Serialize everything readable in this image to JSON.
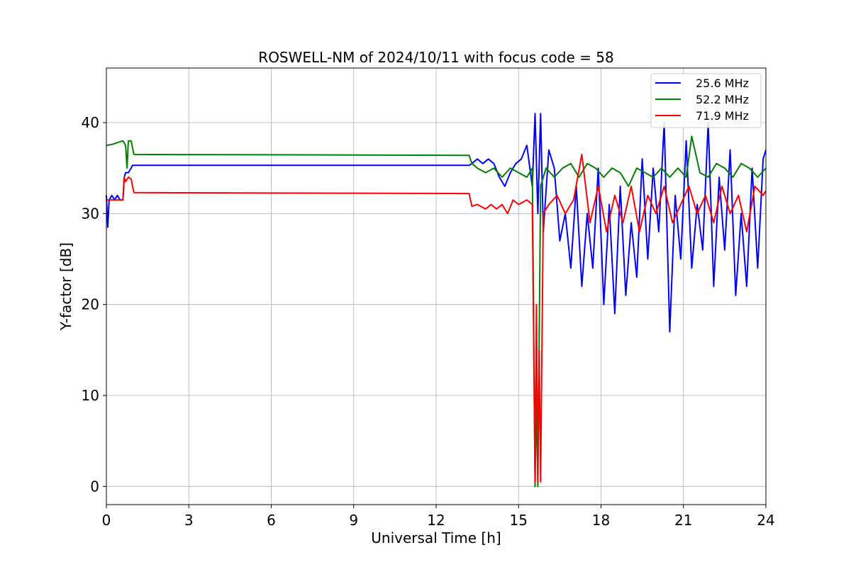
{
  "chart_data": {
    "type": "line",
    "title": "ROSWELL-NM of 2024/10/11 with focus code = 58",
    "xlabel": "Universal Time [h]",
    "ylabel": "Y-factor [dB]",
    "xlim": [
      0,
      24
    ],
    "ylim": [
      -2,
      46
    ],
    "xticks": [
      0,
      3,
      6,
      9,
      12,
      15,
      18,
      21,
      24
    ],
    "yticks": [
      0,
      10,
      20,
      30,
      40
    ],
    "grid": true,
    "legend_position": "top-right",
    "series": [
      {
        "name": "25.6 MHz",
        "color": "#0000ff",
        "x": [
          0.0,
          0.05,
          0.1,
          0.2,
          0.3,
          0.4,
          0.5,
          0.6,
          0.65,
          0.7,
          0.8,
          0.9,
          0.95,
          1.0,
          13.2,
          13.3,
          13.5,
          13.7,
          13.9,
          14.1,
          14.3,
          14.5,
          14.7,
          14.9,
          15.1,
          15.3,
          15.5,
          15.6,
          15.7,
          15.8,
          15.9,
          16.1,
          16.3,
          16.5,
          16.7,
          16.9,
          17.1,
          17.3,
          17.5,
          17.7,
          17.9,
          18.1,
          18.3,
          18.5,
          18.7,
          18.9,
          19.1,
          19.3,
          19.5,
          19.7,
          19.9,
          20.1,
          20.3,
          20.5,
          20.7,
          20.9,
          21.1,
          21.3,
          21.5,
          21.7,
          21.9,
          22.1,
          22.3,
          22.5,
          22.7,
          22.9,
          23.1,
          23.3,
          23.5,
          23.7,
          23.9,
          24.0
        ],
        "values": [
          32,
          28.5,
          31.5,
          32,
          31.5,
          32,
          31.5,
          31.5,
          34,
          34.5,
          34.5,
          35,
          35.3,
          35.3,
          35.3,
          35.5,
          36,
          35.5,
          36,
          35.5,
          34,
          33,
          34.5,
          35.5,
          36,
          37.5,
          33,
          41,
          30,
          41,
          28,
          37,
          35,
          27,
          30,
          24,
          33,
          22,
          30,
          24,
          35,
          20,
          31,
          19,
          33,
          21,
          29,
          23,
          36,
          25,
          35,
          28,
          40,
          17,
          32,
          25,
          38,
          24,
          31,
          26,
          40,
          22,
          34,
          26,
          37,
          21,
          30,
          22,
          35,
          24,
          36,
          37
        ]
      },
      {
        "name": "52.2 MHz",
        "color": "#008000",
        "x": [
          0.0,
          0.2,
          0.4,
          0.6,
          0.7,
          0.75,
          0.8,
          0.9,
          1.0,
          13.2,
          13.3,
          13.5,
          13.8,
          14.1,
          14.4,
          14.7,
          15.0,
          15.3,
          15.5,
          15.6,
          15.65,
          15.7,
          15.8,
          16.0,
          16.3,
          16.6,
          16.9,
          17.2,
          17.5,
          17.8,
          18.1,
          18.4,
          18.7,
          19.0,
          19.3,
          19.6,
          19.9,
          20.2,
          20.5,
          20.8,
          21.1,
          21.3,
          21.6,
          21.9,
          22.2,
          22.5,
          22.8,
          23.1,
          23.4,
          23.7,
          24.0
        ],
        "values": [
          37.5,
          37.6,
          37.8,
          38,
          37.5,
          35,
          38,
          38,
          36.5,
          36.4,
          35.5,
          35,
          34.5,
          35,
          34,
          35,
          34.5,
          34,
          35,
          0,
          10,
          0,
          33,
          35,
          34,
          35,
          35.5,
          34,
          35.5,
          35,
          34,
          35,
          34.5,
          33,
          35,
          34.5,
          34,
          35,
          34,
          35,
          34,
          38.5,
          34.5,
          34,
          35.5,
          35,
          34,
          35.5,
          35,
          34,
          35
        ]
      },
      {
        "name": "71.9 MHz",
        "color": "#ff0000",
        "x": [
          0.0,
          0.2,
          0.4,
          0.6,
          0.65,
          0.7,
          0.8,
          0.9,
          1.0,
          13.2,
          13.3,
          13.5,
          13.8,
          14.0,
          14.2,
          14.4,
          14.6,
          14.8,
          15.0,
          15.3,
          15.5,
          15.6,
          15.65,
          15.7,
          15.75,
          15.8,
          15.9,
          16.1,
          16.4,
          16.7,
          17.0,
          17.3,
          17.6,
          17.9,
          18.2,
          18.5,
          18.8,
          19.1,
          19.4,
          19.7,
          20.0,
          20.3,
          20.6,
          20.9,
          21.2,
          21.5,
          21.8,
          22.1,
          22.4,
          22.7,
          23.0,
          23.3,
          23.6,
          23.9,
          24.0
        ],
        "values": [
          31.5,
          31.5,
          31.5,
          31.5,
          34,
          33.5,
          34,
          33.8,
          32.3,
          32.2,
          30.8,
          31,
          30.5,
          31,
          30.5,
          31,
          30,
          31.5,
          31,
          31.5,
          31,
          0.5,
          20,
          0.5,
          15,
          0.5,
          30,
          31,
          32,
          30,
          31.5,
          36.5,
          29,
          33,
          28,
          32,
          29,
          33,
          28,
          32,
          30,
          33,
          29,
          31,
          33,
          30,
          32,
          29,
          33,
          30,
          32,
          28,
          33,
          32,
          32.5
        ]
      }
    ]
  }
}
